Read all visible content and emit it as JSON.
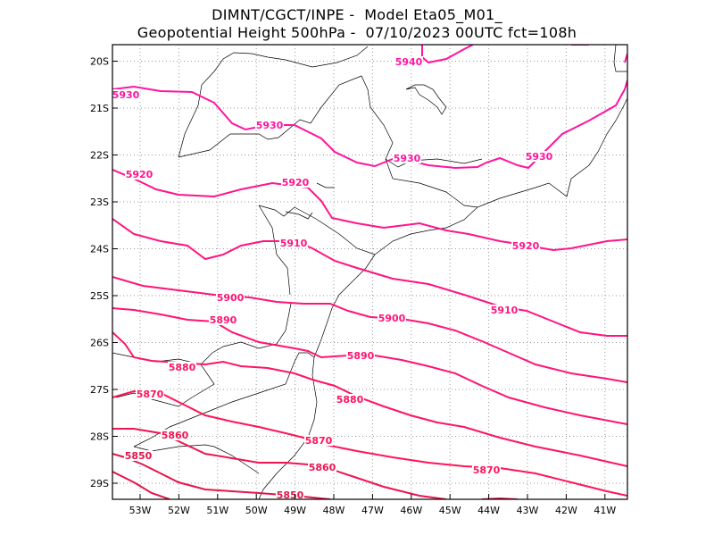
{
  "header": {
    "line1": "DIMNT/CGCT/INPE -  Model Eta05_M01_",
    "line2": "Geopotential Height 500hPa -  07/10/2023 00UTC fct=108h"
  },
  "axes": {
    "lon_ticks": [
      "53W",
      "52W",
      "51W",
      "50W",
      "49W",
      "48W",
      "47W",
      "46W",
      "45W",
      "44W",
      "43W",
      "42W",
      "41W"
    ],
    "lat_ticks": [
      "20S",
      "21S",
      "22S",
      "23S",
      "24S",
      "25S",
      "26S",
      "27S",
      "28S",
      "29S"
    ]
  },
  "contours": [
    {
      "value": "5940",
      "color": "#ff14a0"
    },
    {
      "value": "5930",
      "color": "#ff14a0"
    },
    {
      "value": "5920",
      "color": "#ff148c"
    },
    {
      "value": "5910",
      "color": "#ff1480"
    },
    {
      "value": "5900",
      "color": "#ff1478"
    },
    {
      "value": "5890",
      "color": "#ff1470"
    },
    {
      "value": "5880",
      "color": "#ff1462"
    },
    {
      "value": "5870",
      "color": "#ff145a"
    },
    {
      "value": "5860",
      "color": "#f01450"
    },
    {
      "value": "5850",
      "color": "#e6144a"
    }
  ],
  "labels": [
    {
      "text": "5940"
    },
    {
      "text": "5930"
    },
    {
      "text": "5930"
    },
    {
      "text": "5930"
    },
    {
      "text": "5930"
    },
    {
      "text": "5920"
    },
    {
      "text": "5920"
    },
    {
      "text": "5920"
    },
    {
      "text": "5910"
    },
    {
      "text": "5910"
    },
    {
      "text": "5900"
    },
    {
      "text": "5900"
    },
    {
      "text": "5890"
    },
    {
      "text": "5890"
    },
    {
      "text": "5880"
    },
    {
      "text": "5880"
    },
    {
      "text": "5870"
    },
    {
      "text": "5870"
    },
    {
      "text": "5870"
    },
    {
      "text": "5860"
    },
    {
      "text": "5860"
    },
    {
      "text": "5850"
    },
    {
      "text": "5850"
    }
  ]
}
